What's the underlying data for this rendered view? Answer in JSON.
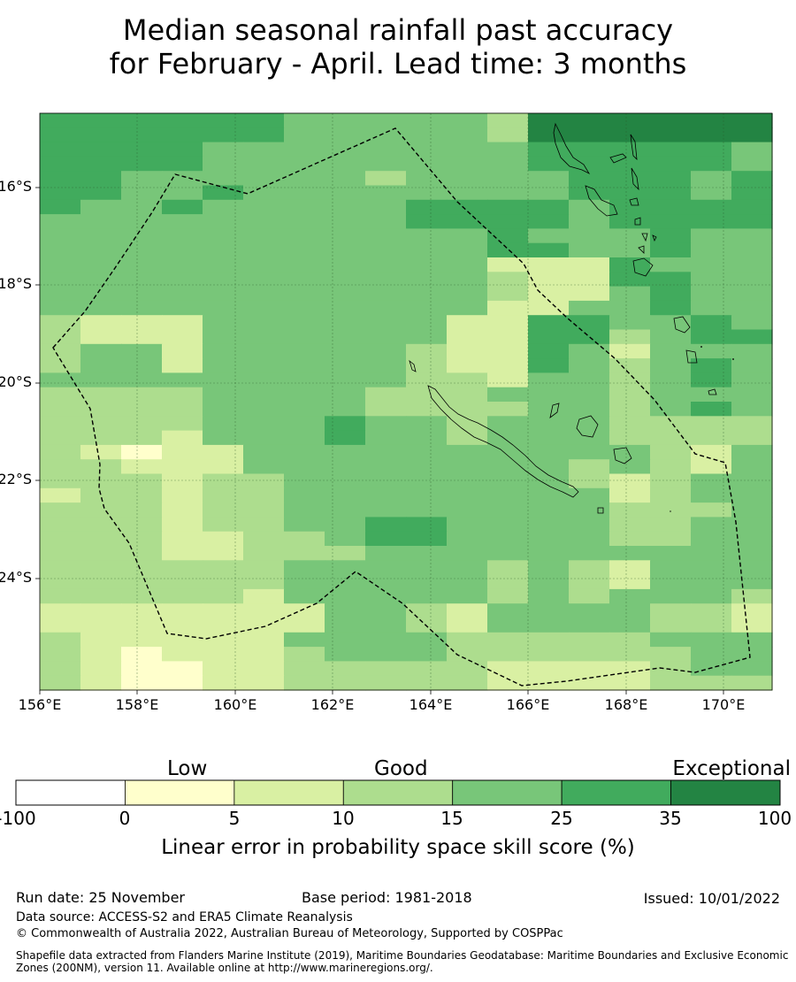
{
  "title": {
    "line1": "Median seasonal rainfall past accuracy",
    "line2": "for February - April. Lead time: 3 months"
  },
  "map": {
    "lon_ticks": [
      "156°E",
      "158°E",
      "160°E",
      "162°E",
      "164°E",
      "166°E",
      "168°E",
      "170°E"
    ],
    "lat_ticks": [
      "16°S",
      "18°S",
      "20°S",
      "22°S",
      "24°S"
    ],
    "grid": [
      "555555444443666666",
      "555555444443666666",
      "555544444444555554",
      "555544444444555554",
      "554444443444455545",
      "554454444444455545",
      "544544444555545555",
      "444444444555545555",
      "444444444445444544",
      "444444444445544544",
      "444444444442225444",
      "444444444443225544",
      "444444444443224544",
      "444444444442244544",
      "322244444422554454",
      "322244444422553455",
      "344244444322542444",
      "344244444322543454",
      "444444444332443454",
      "333344443334443444",
      "333344443333443454",
      "333344454434443333",
      "333244454434443333",
      "321224444444444324",
      "332224444444434324",
      "333233444444432344",
      "233233444444442344",
      "333233444444443334",
      "333233445544443344",
      "333223345544443344",
      "333223334444444444",
      "333333444443432444",
      "333333444443432444",
      "333332444443434443",
      "222222244324444332",
      "222222244324444332",
      "322222444433333444",
      "321222344433333344",
      "321122333332222344",
      "321122333332222333"
    ]
  },
  "colorbar": {
    "colors": [
      "#ffffff",
      "#ffffcc",
      "#d9f0a3",
      "#addd8e",
      "#78c679",
      "#41ab5d",
      "#238443"
    ],
    "tick_labels": [
      "-100",
      "0",
      "5",
      "10",
      "15",
      "25",
      "35",
      "100"
    ],
    "categories": [
      "Low",
      "Good",
      "Exceptional"
    ],
    "label": "Linear error in probability space skill score (%)"
  },
  "footer": {
    "run_date": "Run date: 25 November",
    "base_period": "Base period: 1981-2018",
    "issued": "Issued: 10/01/2022",
    "data_source": "Data source: ACCESS-S2 and ERA5 Climate Reanalysis",
    "copyright": "© Commonwealth of Australia 2022, Australian Bureau of Meteorology, Supported by COSPPac",
    "shapefile": "Shapefile data extracted from Flanders Marine Institute (2019), Maritime Boundaries Geodatabase: Maritime Boundaries and Exclusive Economic Zones (200NM), version 11. Available online at http://www.marineregions.org/."
  }
}
